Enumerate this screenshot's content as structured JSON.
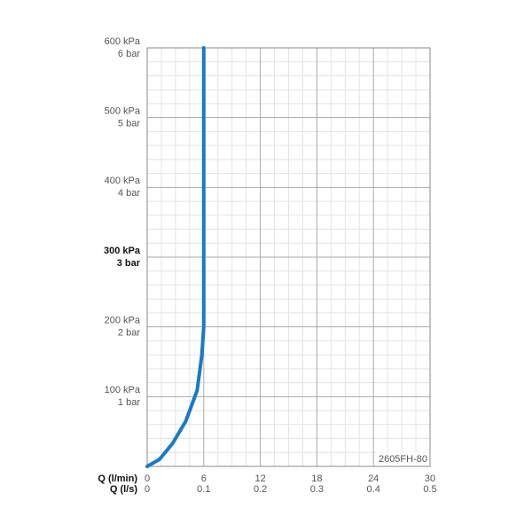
{
  "chart_data": {
    "type": "line",
    "x_label": "Q (l/min)",
    "x2_label": "Q (l/s)",
    "annotation": "2605FH-80",
    "xlim": [
      0,
      30
    ],
    "xticks": [
      0,
      6,
      12,
      18,
      24,
      30
    ],
    "x2lim": [
      0,
      0.5
    ],
    "x2ticks": [
      0,
      0.1,
      0.2,
      0.3,
      0.4,
      0.5
    ],
    "ylim": [
      0,
      600
    ],
    "yticks": [
      {
        "value": 100,
        "label": "100 kPa"
      },
      {
        "value": 200,
        "label": "200 kPa"
      },
      {
        "value": 300,
        "label": "300 kPa"
      },
      {
        "value": 400,
        "label": "400 kPa"
      },
      {
        "value": 500,
        "label": "500 kPa"
      },
      {
        "value": 600,
        "label": "600 kPa"
      }
    ],
    "y2lim": [
      0,
      6
    ],
    "y2ticks": [
      {
        "value": 1,
        "label": "1 bar"
      },
      {
        "value": 2,
        "label": "2 bar"
      },
      {
        "value": 3,
        "label": "3 bar"
      },
      {
        "value": 4,
        "label": "4 bar"
      },
      {
        "value": 5,
        "label": "5 bar"
      },
      {
        "value": 6,
        "label": "6 bar"
      }
    ],
    "bold_ytick": 300,
    "grid": true,
    "series": [
      {
        "color": "#1a7ac4",
        "x": [
          0,
          1.3,
          2.7,
          4.1,
          5.3,
          5.8,
          6,
          6
        ],
        "values": [
          0,
          10,
          33,
          65,
          109,
          160,
          200,
          600
        ]
      }
    ]
  }
}
